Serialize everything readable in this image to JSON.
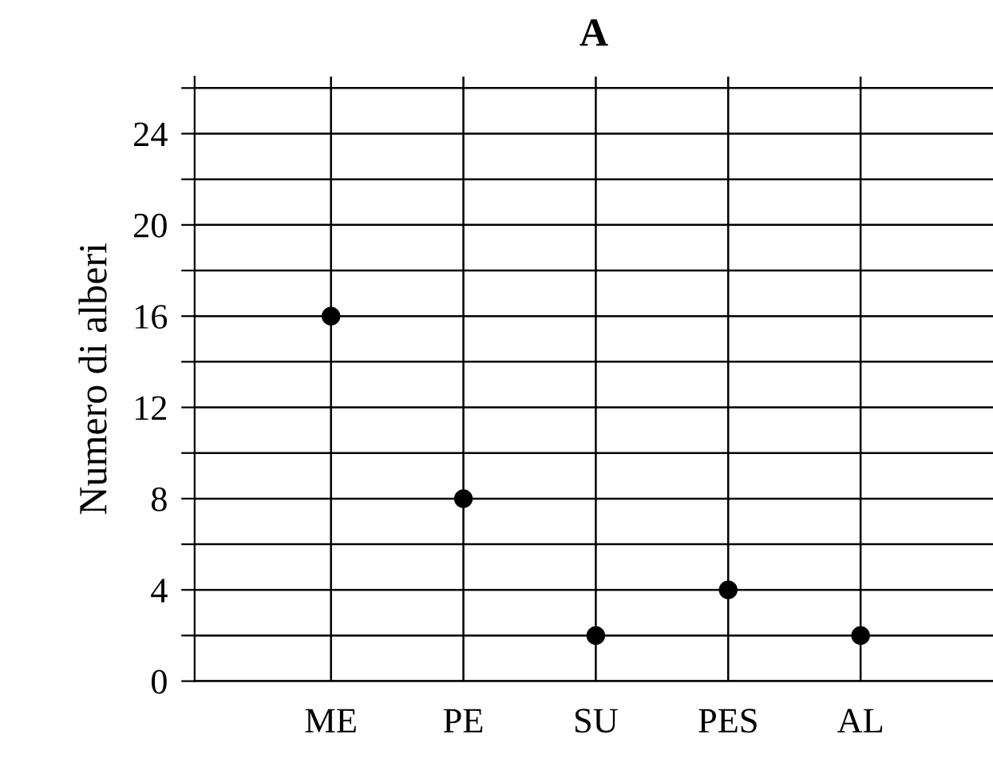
{
  "chart_data": {
    "type": "scatter",
    "title": "A",
    "ylabel": "Numero di alberi",
    "categories": [
      "ME",
      "PE",
      "SU",
      "PES",
      "AL"
    ],
    "series": [
      {
        "color": "#000000",
        "values": [
          16,
          8,
          2,
          4,
          2
        ]
      }
    ],
    "ylim": [
      0,
      26.5
    ],
    "yticks": [
      0,
      {
        "value": 2,
        "label": null
      },
      4,
      {
        "value": 6,
        "label": null
      },
      8,
      {
        "value": 10,
        "label": null
      },
      12,
      {
        "value": 14,
        "label": null
      },
      16,
      {
        "value": 18,
        "label": null
      },
      20,
      {
        "value": 22,
        "label": null
      },
      24,
      {
        "value": 26,
        "label": null
      }
    ],
    "grid": true,
    "marker": "circle"
  }
}
